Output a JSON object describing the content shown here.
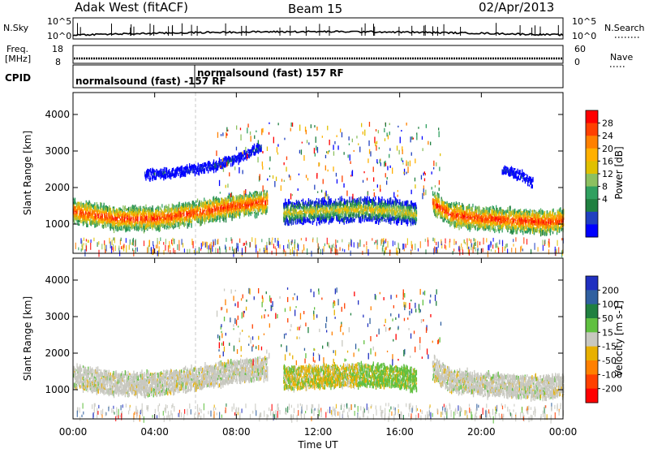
{
  "header": {
    "station": "Adak West (fitACF)",
    "beam": "Beam 15",
    "date": "02/Apr/2013"
  },
  "top_panels": {
    "nsky_label": "N.Sky",
    "nsky_ticks": [
      "10^5",
      "10^0"
    ],
    "nsearch_label": "N.Search",
    "nsearch_ticks": [
      "10^5",
      "10^0"
    ],
    "freq_label_1": "Freq.",
    "freq_label_2": "[MHz]",
    "freq_ticks": [
      "18",
      "8"
    ],
    "nave_label": "Nave",
    "nave_ticks": [
      "60",
      "0"
    ],
    "cpid_label": "CPID",
    "cpid_program_1": "normalsound (fast) -157 RF",
    "cpid_program_2": "normalsound (fast) 157 RF"
  },
  "chart_data": [
    {
      "type": "heatmap",
      "panel": "power",
      "ylabel": "Slant Range [km]",
      "ylim": [
        200,
        4600
      ],
      "yticks": [
        1000,
        2000,
        3000,
        4000
      ],
      "xlabel": "Time UT",
      "xlim": [
        0,
        24
      ],
      "xticks": [
        "00:00",
        "04:00",
        "08:00",
        "12:00",
        "16:00",
        "20:00",
        "00:00"
      ],
      "colorbar": {
        "label": "Power [dB]",
        "ticks": [
          "28",
          "24",
          "20",
          "16",
          "12",
          "8",
          "4"
        ],
        "colors": [
          "#ff0000",
          "#ff4000",
          "#ff8000",
          "#ffb000",
          "#e0c000",
          "#8cc060",
          "#30a060",
          "#208040",
          "#2040c0",
          "#0000ff"
        ]
      },
      "bands": [
        {
          "name": "ionospheric echo",
          "t": [
            0,
            2,
            4,
            6,
            8,
            9.5
          ],
          "range": [
            1350,
            1150,
            1150,
            1300,
            1500,
            1600
          ],
          "power": "high"
        },
        {
          "name": "echo",
          "t": [
            10.3,
            12,
            14,
            16,
            16.8
          ],
          "range": [
            1300,
            1350,
            1400,
            1350,
            1250
          ],
          "power": "medium"
        },
        {
          "name": "echo",
          "t": [
            17.6,
            18.5,
            20,
            21.5,
            23,
            24
          ],
          "range": [
            1600,
            1250,
            1150,
            1100,
            1050,
            1100
          ],
          "power": "high"
        },
        {
          "name": "echo",
          "t": [
            3.5,
            5,
            7,
            8.5,
            9.2
          ],
          "range": [
            2350,
            2400,
            2600,
            2900,
            3100
          ],
          "power": "low"
        },
        {
          "name": "echo",
          "t": [
            21,
            22,
            22.5
          ],
          "range": [
            2500,
            2300,
            2100
          ],
          "power": "low"
        }
      ]
    },
    {
      "type": "heatmap",
      "panel": "velocity",
      "ylabel": "Slant Range [km]",
      "ylim": [
        200,
        4600
      ],
      "yticks": [
        1000,
        2000,
        3000,
        4000
      ],
      "xlabel": "Time UT",
      "xlim": [
        0,
        24
      ],
      "xticks": [
        "00:00",
        "04:00",
        "08:00",
        "12:00",
        "16:00",
        "20:00",
        "00:00"
      ],
      "colorbar": {
        "label": "Velocity [m s-1]",
        "ticks": [
          "200",
          "100",
          "50",
          "15",
          "-15",
          "-50",
          "-100",
          "-200"
        ],
        "colors": [
          "#2030c0",
          "#3060a0",
          "#208040",
          "#60c040",
          "#c8c8c0",
          "#e8b000",
          "#ff8000",
          "#ff4000",
          "#ff0000"
        ]
      },
      "bands": [
        {
          "name": "ionospheric echo",
          "t": [
            0,
            2,
            4,
            6,
            8,
            9.5
          ],
          "range": [
            1350,
            1150,
            1150,
            1300,
            1500,
            1600
          ],
          "velocity": "near zero"
        },
        {
          "name": "echo",
          "t": [
            10.3,
            12,
            14,
            16,
            16.8
          ],
          "range": [
            1300,
            1350,
            1400,
            1350,
            1250
          ],
          "velocity": "mixed"
        },
        {
          "name": "echo",
          "t": [
            17.6,
            18.5,
            20,
            21.5,
            23,
            24
          ],
          "range": [
            1600,
            1250,
            1150,
            1100,
            1050,
            1100
          ],
          "velocity": "near zero"
        }
      ]
    }
  ]
}
